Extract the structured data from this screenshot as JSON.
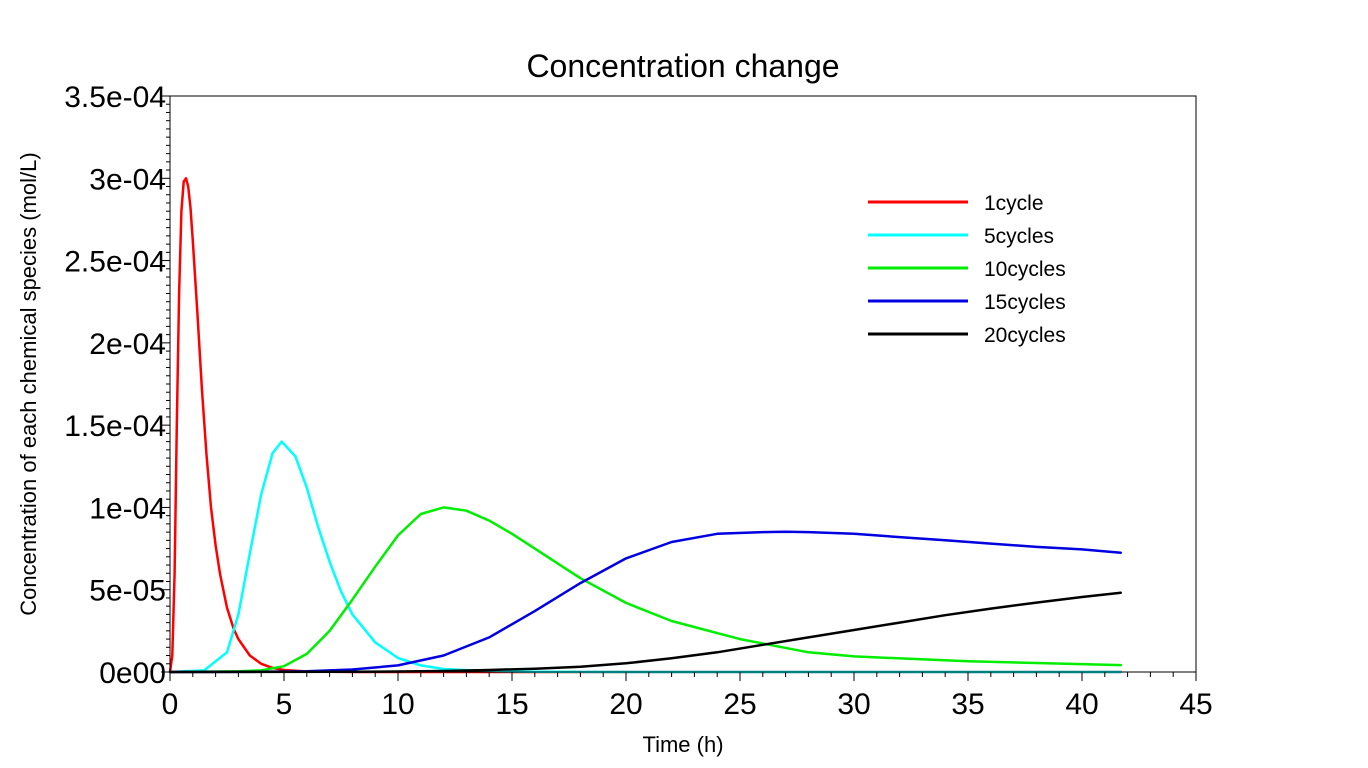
{
  "chart_data": {
    "type": "line",
    "title": "Concentration change",
    "xlabel": "Time (h)",
    "ylabel": "Concentration of each chemical species (mol/L)",
    "xlim": [
      0,
      45
    ],
    "ylim": [
      0,
      0.00035
    ],
    "x_ticks": [
      0,
      5,
      10,
      15,
      20,
      25,
      30,
      35,
      40,
      45
    ],
    "y_ticks": [
      {
        "value": 0,
        "label": "0e00"
      },
      {
        "value": 5e-05,
        "label": "5e-05"
      },
      {
        "value": 0.0001,
        "label": "1e-04"
      },
      {
        "value": 0.00015,
        "label": "1.5e-04"
      },
      {
        "value": 0.0002,
        "label": "2e-04"
      },
      {
        "value": 0.00025,
        "label": "2.5e-04"
      },
      {
        "value": 0.0003,
        "label": "3e-04"
      },
      {
        "value": 0.00035,
        "label": "3.5e-04"
      }
    ],
    "grid": false,
    "legend_position": "top-right",
    "series": [
      {
        "name": "1cycle",
        "color": "#ff0000",
        "x": [
          0,
          0.1,
          0.2,
          0.3,
          0.4,
          0.5,
          0.6,
          0.7,
          0.8,
          0.9,
          1.0,
          1.1,
          1.2,
          1.4,
          1.6,
          1.8,
          2.0,
          2.2,
          2.5,
          2.8,
          3.0,
          3.5,
          4.0,
          4.5,
          5.0,
          6.0,
          7.0,
          8.0,
          10,
          15,
          20,
          30,
          41.7
        ],
        "y": [
          0,
          1e-05,
          6e-05,
          0.00015,
          0.00023,
          0.00028,
          0.000298,
          0.0003,
          0.000295,
          0.000282,
          0.000262,
          0.00024,
          0.000218,
          0.000172,
          0.000132,
          0.0001,
          7.7e-05,
          5.9e-05,
          3.9e-05,
          2.6e-05,
          2e-05,
          1e-05,
          5e-06,
          2.5e-06,
          1.2e-06,
          3e-07,
          1e-07,
          3e-08,
          0,
          0,
          0,
          0,
          0
        ]
      },
      {
        "name": "5cycles",
        "color": "#00ffff",
        "x": [
          0,
          1.5,
          2.5,
          3,
          3.5,
          4,
          4.5,
          4.9,
          5.5,
          6,
          6.5,
          7,
          7.5,
          8,
          9,
          10,
          11,
          12,
          14,
          16,
          20,
          25,
          30,
          35,
          41.7
        ],
        "y": [
          0,
          1e-06,
          1.2e-05,
          3.5e-05,
          7.2e-05,
          0.000108,
          0.000133,
          0.00014,
          0.000131,
          0.000112,
          8.8e-05,
          6.7e-05,
          4.9e-05,
          3.5e-05,
          1.8e-05,
          8.5e-06,
          4e-06,
          1.8e-06,
          4e-07,
          1e-07,
          0,
          0,
          0,
          0,
          0
        ]
      },
      {
        "name": "10cycles",
        "color": "#00ee00",
        "x": [
          0,
          3,
          4,
          5,
          6,
          7,
          8,
          9,
          10,
          11,
          12,
          13,
          14,
          15,
          16,
          17,
          18,
          20,
          22,
          25,
          28,
          30,
          35,
          41.7
        ],
        "y": [
          0,
          4e-07,
          1e-06,
          3.5e-06,
          1.1e-05,
          2.5e-05,
          4.4e-05,
          6.4e-05,
          8.3e-05,
          9.6e-05,
          0.0001,
          9.8e-05,
          9.2e-05,
          8.4e-05,
          7.5e-05,
          6.6e-05,
          5.7e-05,
          4.2e-05,
          3.1e-05,
          2e-05,
          1.2e-05,
          9.5e-06,
          6.5e-06,
          4.2e-06
        ]
      },
      {
        "name": "15cycles",
        "color": "#0000e0",
        "x": [
          0,
          4,
          6,
          8,
          10,
          12,
          14,
          16,
          18,
          20,
          22,
          24,
          26,
          27,
          28,
          30,
          32,
          34,
          36,
          38,
          40,
          41.7
        ],
        "y": [
          0,
          1e-07,
          5e-07,
          1.5e-06,
          4e-06,
          1e-05,
          2.1e-05,
          3.7e-05,
          5.4e-05,
          6.9e-05,
          7.9e-05,
          8.4e-05,
          8.5e-05,
          8.52e-05,
          8.5e-05,
          8.4e-05,
          8.2e-05,
          8e-05,
          7.8e-05,
          7.6e-05,
          7.45e-05,
          7.25e-05
        ]
      },
      {
        "name": "20cycles",
        "color": "#000000",
        "x": [
          0,
          8,
          10,
          12,
          14,
          16,
          18,
          20,
          22,
          24,
          26,
          28,
          30,
          32,
          34,
          36,
          38,
          40,
          41.7
        ],
        "y": [
          0,
          1e-07,
          3e-07,
          6e-07,
          1.2e-06,
          2e-06,
          3.2e-06,
          5.3e-06,
          8.3e-06,
          1.2e-05,
          1.65e-05,
          2.1e-05,
          2.55e-05,
          3e-05,
          3.45e-05,
          3.85e-05,
          4.22e-05,
          4.56e-05,
          4.82e-05
        ]
      }
    ]
  }
}
